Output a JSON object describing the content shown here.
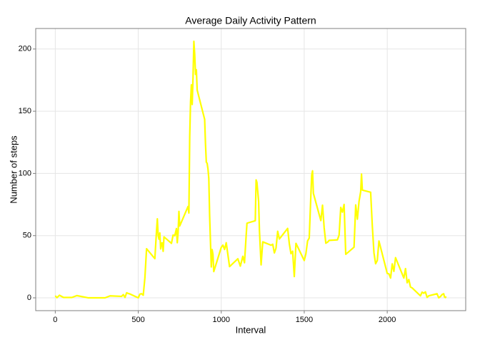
{
  "chart_data": {
    "type": "line",
    "title": "Average Daily Activity Pattern",
    "x_label": "Interval",
    "y_label": "Number of steps",
    "xlim": [
      -117.75,
      2472.75
    ],
    "ylim": [
      -10.3,
      216.5
    ],
    "xticks": [
      0,
      500,
      1000,
      1500,
      2000
    ],
    "yticks": [
      0,
      50,
      100,
      150,
      200
    ],
    "grid": true,
    "series": [
      {
        "color": "#ffff00",
        "x": [
          0,
          10,
          25,
          50,
          100,
          130,
          200,
          300,
          330,
          400,
          410,
          420,
          430,
          440,
          450,
          500,
          510,
          520,
          530,
          540,
          550,
          600,
          610,
          615,
          620,
          625,
          630,
          635,
          640,
          645,
          650,
          655,
          700,
          710,
          720,
          730,
          735,
          740,
          745,
          750,
          800,
          805,
          810,
          815,
          820,
          825,
          830,
          835,
          840,
          845,
          850,
          855,
          900,
          905,
          910,
          915,
          920,
          925,
          930,
          935,
          940,
          945,
          950,
          955,
          1000,
          1010,
          1020,
          1030,
          1040,
          1050,
          1100,
          1115,
          1130,
          1140,
          1150,
          1155,
          1205,
          1210,
          1215,
          1225,
          1230,
          1240,
          1250,
          1300,
          1310,
          1320,
          1330,
          1340,
          1350,
          1400,
          1410,
          1420,
          1430,
          1440,
          1450,
          1500,
          1510,
          1520,
          1530,
          1535,
          1540,
          1545,
          1550,
          1555,
          1600,
          1610,
          1620,
          1630,
          1640,
          1650,
          1700,
          1710,
          1720,
          1730,
          1740,
          1750,
          1800,
          1810,
          1820,
          1830,
          1840,
          1845,
          1850,
          1900,
          1910,
          1920,
          1930,
          1940,
          1950,
          2000,
          2010,
          2020,
          2030,
          2040,
          2050,
          2100,
          2110,
          2120,
          2130,
          2140,
          2150,
          2200,
          2210,
          2220,
          2230,
          2240,
          2250,
          2300,
          2310,
          2320,
          2330,
          2340,
          2345,
          2350,
          2355
        ],
        "values": [
          1.7,
          0.1,
          2.1,
          0.3,
          0.3,
          1.8,
          0,
          0,
          1.6,
          1.2,
          2.6,
          0.3,
          4.1,
          3.5,
          3.1,
          0,
          3.0,
          3.3,
          2.1,
          16,
          39.5,
          31.5,
          53.8,
          63.5,
          50,
          47.1,
          52.2,
          39.3,
          44,
          44.2,
          37.4,
          49.0,
          43.8,
          50.5,
          49.9,
          55.7,
          44.3,
          52.3,
          69.5,
          57.8,
          73.4,
          68.2,
          129.4,
          157.5,
          171.2,
          155.4,
          177.3,
          206.2,
          195.9,
          179.6,
          183.4,
          167.0,
          143.5,
          124.0,
          109.1,
          108.1,
          103.7,
          96.0,
          66.2,
          45.2,
          24.8,
          38.8,
          35.0,
          21.1,
          40.6,
          42.4,
          38.9,
          44.3,
          34.7,
          25.1,
          31.4,
          25.5,
          33.4,
          28.2,
          50.0,
          60.0,
          62.0,
          94.8,
          92.8,
          77.7,
          54.5,
          26.5,
          45,
          42.3,
          43.1,
          36.1,
          40,
          53.5,
          47.3,
          55.8,
          43.6,
          35.5,
          37.5,
          17.1,
          43.8,
          30.0,
          35.5,
          45.7,
          48.1,
          65.3,
          82.9,
          98.7,
          102.1,
          84.0,
          62.1,
          74.5,
          56.3,
          43.9,
          44.7,
          46.2,
          46.6,
          50.5,
          72.7,
          68.9,
          75.1,
          35.0,
          40.7,
          74.7,
          63.2,
          77.4,
          85.3,
          99.5,
          86.6,
          84.9,
          58.0,
          36.1,
          27.4,
          30.0,
          45.7,
          19.6,
          19.3,
          15.9,
          27.3,
          21.3,
          32.3,
          15.9,
          23.5,
          12.1,
          14.7,
          8.7,
          8.0,
          1.6,
          4.6,
          3.7,
          4.8,
          0.3,
          1.6,
          3.3,
          0,
          1.0,
          2.6,
          3.3,
          0.7,
          0.2,
          1.1
        ]
      }
    ]
  }
}
